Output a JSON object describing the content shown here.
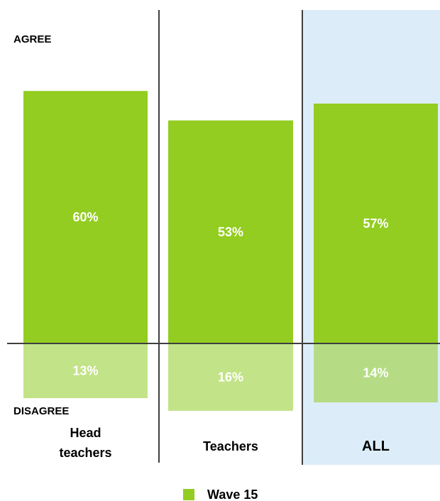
{
  "chart_data": {
    "type": "bar",
    "axis_labels": {
      "top": "AGREE",
      "bottom": "DISAGREE"
    },
    "categories": [
      "Head teachers",
      "Teachers",
      "ALL"
    ],
    "series": [
      {
        "name": "Wave 15",
        "agree": [
          60,
          53,
          57
        ],
        "disagree": [
          13,
          16,
          14
        ]
      }
    ],
    "value_labels": {
      "agree": [
        "60%",
        "53%",
        "57%"
      ],
      "disagree": [
        "13%",
        "16%",
        "14%"
      ]
    },
    "legend": {
      "position": "bottom-center",
      "entries": [
        "Wave 15"
      ]
    },
    "highlight_category": "ALL",
    "colors": {
      "agree": "#93cd21",
      "disagree": "#c2e388",
      "disagree_highlight": "#b5dc84",
      "highlight_bg": "#dcedf9",
      "divider": "#3f3f3f"
    }
  }
}
